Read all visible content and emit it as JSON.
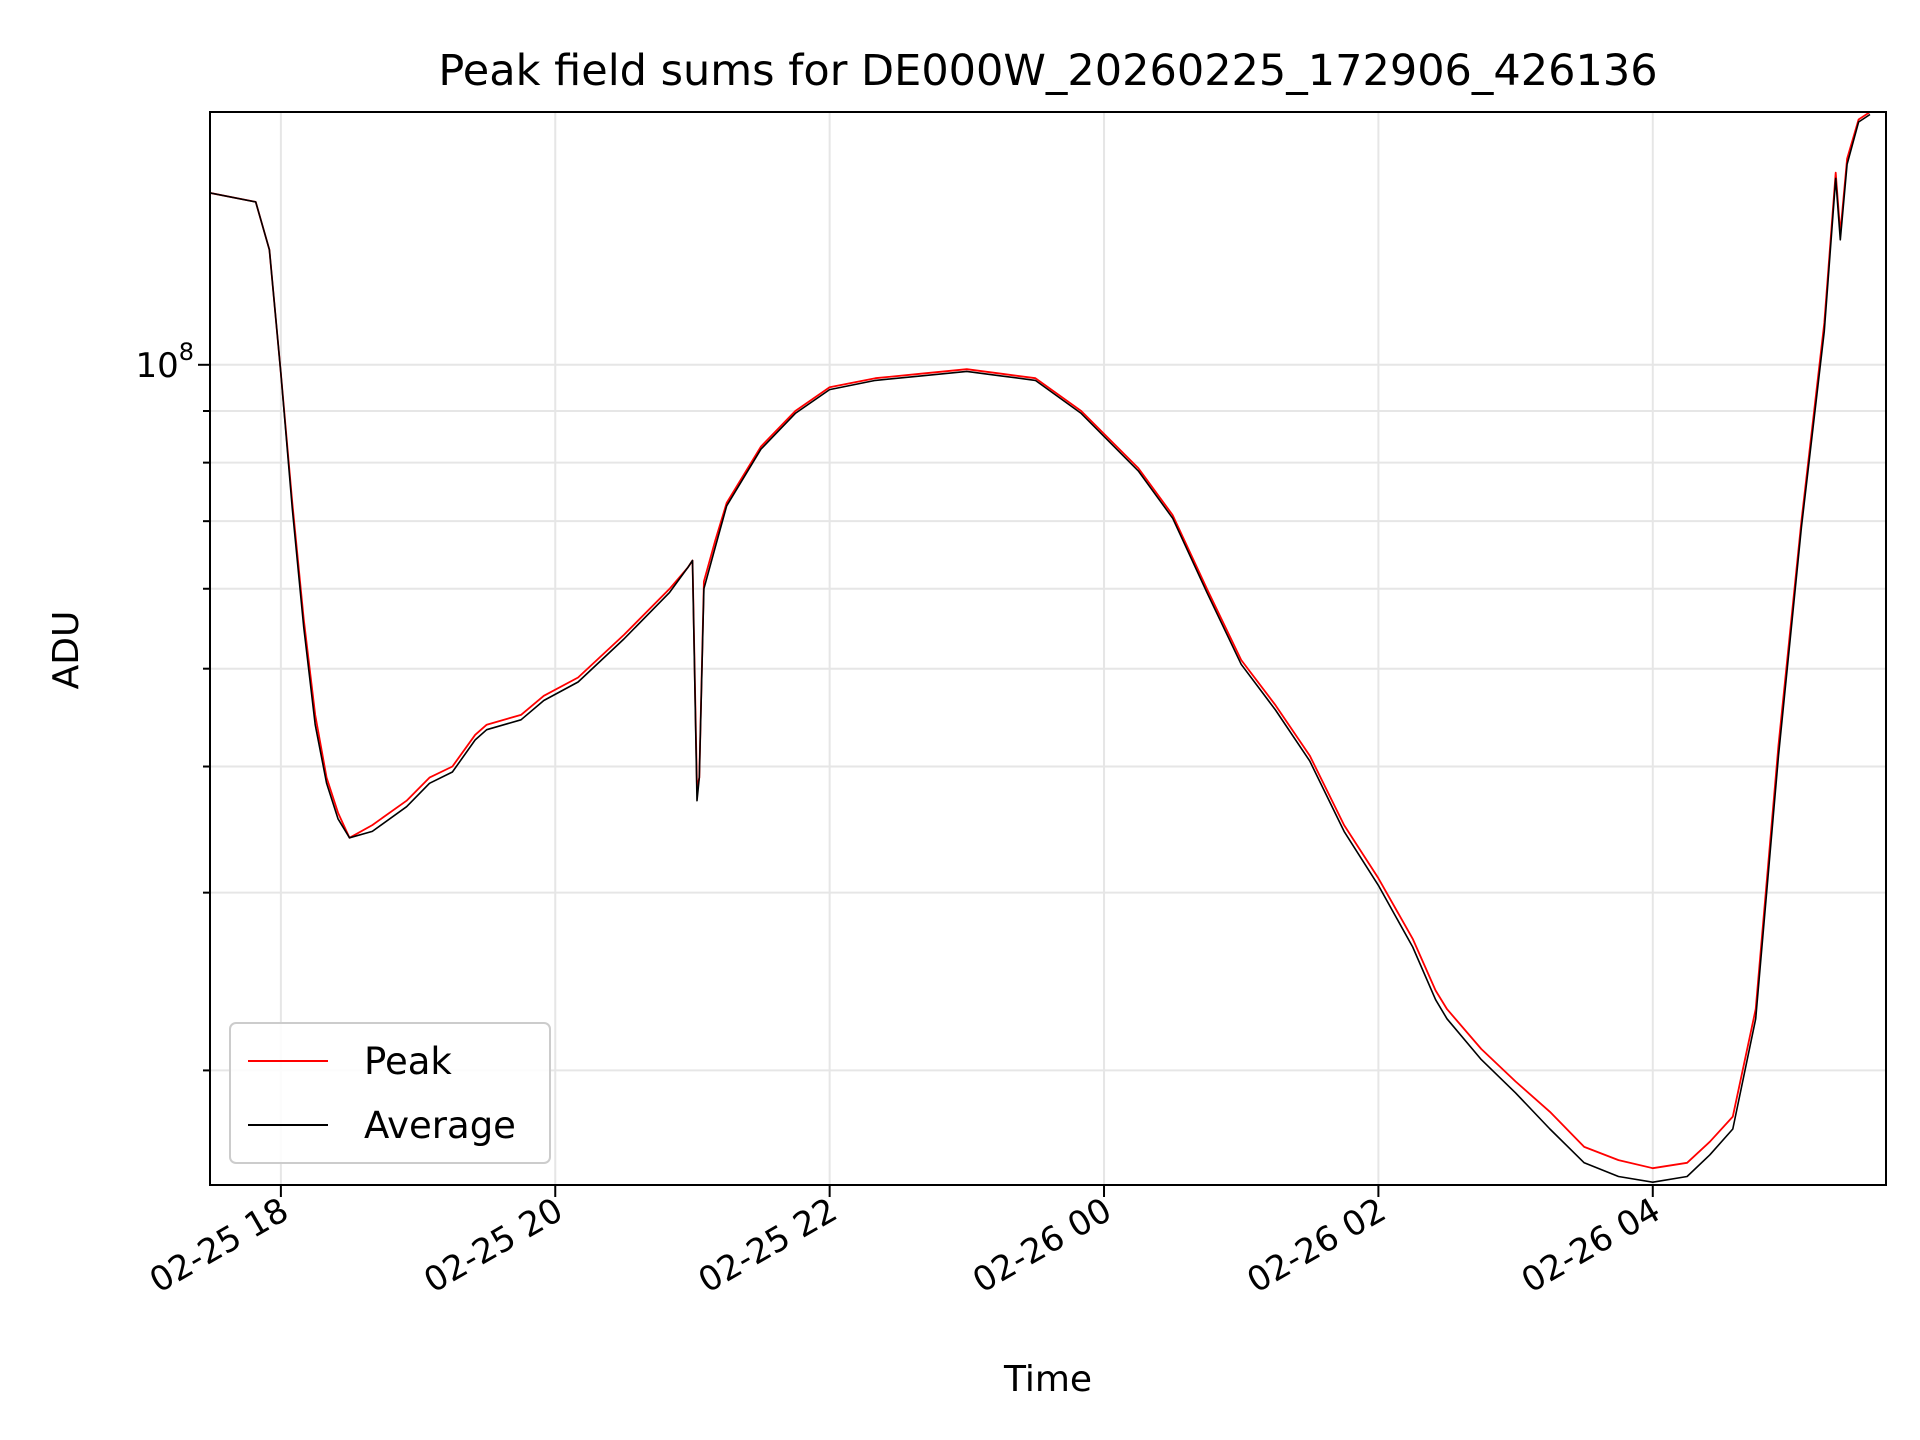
{
  "chart_data": {
    "type": "line",
    "title": "Peak field sums for DE000W_20260225_172906_426136",
    "xlabel": "Time",
    "ylabel": "ADU",
    "yscale": "log",
    "grid": true,
    "legend_position": "lower-left",
    "x_tick_labels": [
      "02-25 18",
      "02-25 20",
      "02-25 22",
      "02-26 00",
      "02-26 02",
      "02-26 04"
    ],
    "y_major_tick_label": "10^8",
    "y_major_tick_value": 100000000,
    "x_range": [
      "2026-02-25 17:29",
      "2026-02-26 05:42"
    ],
    "y_range": [
      15400000,
      178000000
    ],
    "series": [
      {
        "name": "Peak",
        "color": "#ff0000",
        "x": [
          "2026-02-25 17:29",
          "2026-02-25 17:49",
          "2026-02-25 17:55",
          "2026-02-25 18:00",
          "2026-02-25 18:05",
          "2026-02-25 18:10",
          "2026-02-25 18:15",
          "2026-02-25 18:20",
          "2026-02-25 18:25",
          "2026-02-25 18:30",
          "2026-02-25 18:40",
          "2026-02-25 18:55",
          "2026-02-25 19:05",
          "2026-02-25 19:15",
          "2026-02-25 19:25",
          "2026-02-25 19:30",
          "2026-02-25 19:45",
          "2026-02-25 19:55",
          "2026-02-25 20:10",
          "2026-02-25 20:30",
          "2026-02-25 20:50",
          "2026-02-25 20:58",
          "2026-02-25 21:00",
          "2026-02-25 21:02",
          "2026-02-25 21:03",
          "2026-02-25 21:05",
          "2026-02-25 21:10",
          "2026-02-25 21:15",
          "2026-02-25 21:30",
          "2026-02-25 21:45",
          "2026-02-25 22:00",
          "2026-02-25 22:20",
          "2026-02-25 22:40",
          "2026-02-25 23:00",
          "2026-02-25 23:15",
          "2026-02-25 23:30",
          "2026-02-25 23:50",
          "2026-02-26 00:15",
          "2026-02-26 00:30",
          "2026-02-26 00:45",
          "2026-02-26 01:00",
          "2026-02-26 01:15",
          "2026-02-26 01:30",
          "2026-02-26 01:45",
          "2026-02-26 02:00",
          "2026-02-26 02:15",
          "2026-02-26 02:25",
          "2026-02-26 02:30",
          "2026-02-26 02:45",
          "2026-02-26 03:00",
          "2026-02-26 03:15",
          "2026-02-26 03:30",
          "2026-02-26 03:45",
          "2026-02-26 04:00",
          "2026-02-26 04:15",
          "2026-02-26 04:25",
          "2026-02-26 04:35",
          "2026-02-26 04:45",
          "2026-02-26 04:55",
          "2026-02-26 05:05",
          "2026-02-26 05:15",
          "2026-02-26 05:20",
          "2026-02-26 05:22",
          "2026-02-26 05:25",
          "2026-02-26 05:30",
          "2026-02-26 05:35"
        ],
        "values": [
          148000000,
          145000000,
          130000000,
          98000000,
          73000000,
          56000000,
          45000000,
          39000000,
          36000000,
          34000000,
          35000000,
          37000000,
          39000000,
          40000000,
          43000000,
          44000000,
          45000000,
          47000000,
          49000000,
          54000000,
          60000000,
          63000000,
          64000000,
          38000000,
          39000000,
          61000000,
          67000000,
          73000000,
          83000000,
          90000000,
          95000000,
          97000000,
          98000000,
          99000000,
          98000000,
          97000000,
          90000000,
          79000000,
          71000000,
          60000000,
          51000000,
          46000000,
          41000000,
          35000000,
          31000000,
          27000000,
          24000000,
          23000000,
          21000000,
          19500000,
          18200000,
          16800000,
          16300000,
          16000000,
          16200000,
          17000000,
          18000000,
          23000000,
          42000000,
          70000000,
          110000000,
          155000000,
          135000000,
          160000000,
          175000000,
          178000000
        ]
      },
      {
        "name": "Average",
        "color": "#000000",
        "x": [
          "2026-02-25 17:29",
          "2026-02-25 17:49",
          "2026-02-25 17:55",
          "2026-02-25 18:00",
          "2026-02-25 18:05",
          "2026-02-25 18:10",
          "2026-02-25 18:15",
          "2026-02-25 18:20",
          "2026-02-25 18:25",
          "2026-02-25 18:30",
          "2026-02-25 18:40",
          "2026-02-25 18:55",
          "2026-02-25 19:05",
          "2026-02-25 19:15",
          "2026-02-25 19:25",
          "2026-02-25 19:30",
          "2026-02-25 19:45",
          "2026-02-25 19:55",
          "2026-02-25 20:10",
          "2026-02-25 20:30",
          "2026-02-25 20:50",
          "2026-02-25 20:58",
          "2026-02-25 21:00",
          "2026-02-25 21:02",
          "2026-02-25 21:03",
          "2026-02-25 21:05",
          "2026-02-25 21:10",
          "2026-02-25 21:15",
          "2026-02-25 21:30",
          "2026-02-25 21:45",
          "2026-02-25 22:00",
          "2026-02-25 22:20",
          "2026-02-25 22:40",
          "2026-02-25 23:00",
          "2026-02-25 23:15",
          "2026-02-25 23:30",
          "2026-02-25 23:50",
          "2026-02-26 00:15",
          "2026-02-26 00:30",
          "2026-02-26 00:45",
          "2026-02-26 01:00",
          "2026-02-26 01:15",
          "2026-02-26 01:30",
          "2026-02-26 01:45",
          "2026-02-26 02:00",
          "2026-02-26 02:15",
          "2026-02-26 02:25",
          "2026-02-26 02:30",
          "2026-02-26 02:45",
          "2026-02-26 03:00",
          "2026-02-26 03:15",
          "2026-02-26 03:30",
          "2026-02-26 03:45",
          "2026-02-26 04:00",
          "2026-02-26 04:15",
          "2026-02-26 04:25",
          "2026-02-26 04:35",
          "2026-02-26 04:45",
          "2026-02-26 04:55",
          "2026-02-26 05:05",
          "2026-02-26 05:15",
          "2026-02-26 05:20",
          "2026-02-26 05:22",
          "2026-02-26 05:25",
          "2026-02-26 05:30",
          "2026-02-26 05:35"
        ],
        "values": [
          148000000,
          145000000,
          130000000,
          98000000,
          72000000,
          55000000,
          44000000,
          38500000,
          35500000,
          34000000,
          34500000,
          36500000,
          38500000,
          39500000,
          42500000,
          43500000,
          44500000,
          46500000,
          48500000,
          53500000,
          59500000,
          63000000,
          64000000,
          37000000,
          39000000,
          60000000,
          66000000,
          72500000,
          82500000,
          89500000,
          94500000,
          96500000,
          97500000,
          98500000,
          97500000,
          96500000,
          89500000,
          78500000,
          70500000,
          59500000,
          50500000,
          45500000,
          40500000,
          34500000,
          30500000,
          26500000,
          23500000,
          22500000,
          20500000,
          19000000,
          17500000,
          16200000,
          15700000,
          15500000,
          15700000,
          16500000,
          17500000,
          22500000,
          41000000,
          69000000,
          108000000,
          153000000,
          133000000,
          158000000,
          174000000,
          177000000
        ]
      }
    ]
  }
}
